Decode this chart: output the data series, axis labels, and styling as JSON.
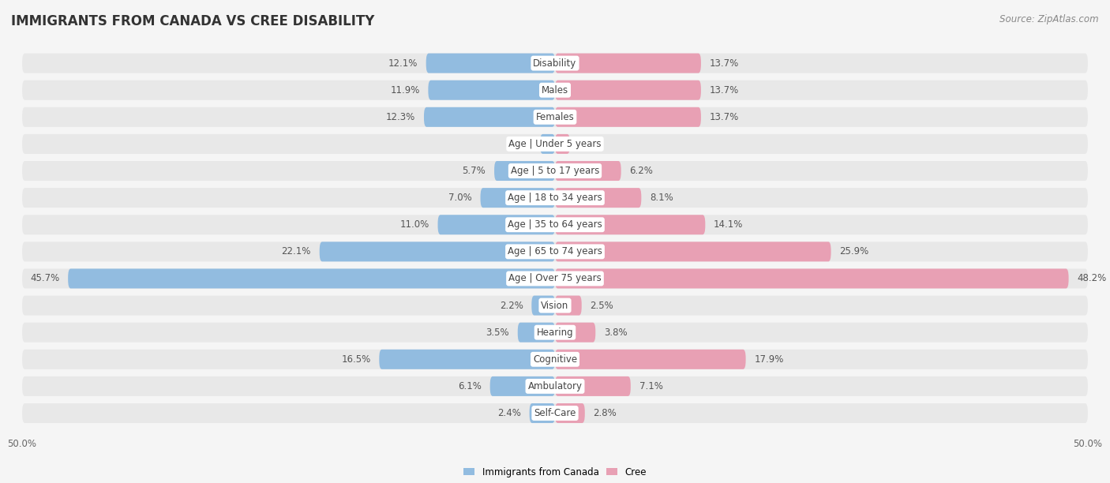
{
  "title": "IMMIGRANTS FROM CANADA VS CREE DISABILITY",
  "source": "Source: ZipAtlas.com",
  "categories": [
    "Disability",
    "Males",
    "Females",
    "Age | Under 5 years",
    "Age | 5 to 17 years",
    "Age | 18 to 34 years",
    "Age | 35 to 64 years",
    "Age | 65 to 74 years",
    "Age | Over 75 years",
    "Vision",
    "Hearing",
    "Cognitive",
    "Ambulatory",
    "Self-Care"
  ],
  "left_values": [
    12.1,
    11.9,
    12.3,
    1.4,
    5.7,
    7.0,
    11.0,
    22.1,
    45.7,
    2.2,
    3.5,
    16.5,
    6.1,
    2.4
  ],
  "right_values": [
    13.7,
    13.7,
    13.7,
    1.4,
    6.2,
    8.1,
    14.1,
    25.9,
    48.2,
    2.5,
    3.8,
    17.9,
    7.1,
    2.8
  ],
  "left_color": "#92bce0",
  "right_color": "#e8a0b4",
  "left_label": "Immigrants from Canada",
  "right_label": "Cree",
  "axis_max": 50.0,
  "row_bg_color": "#e8e8e8",
  "bar_bg_color": "#f5f5f5",
  "title_fontsize": 12,
  "label_fontsize": 8.5,
  "value_fontsize": 8.5,
  "source_fontsize": 8.5,
  "cat_fontsize": 8.5
}
